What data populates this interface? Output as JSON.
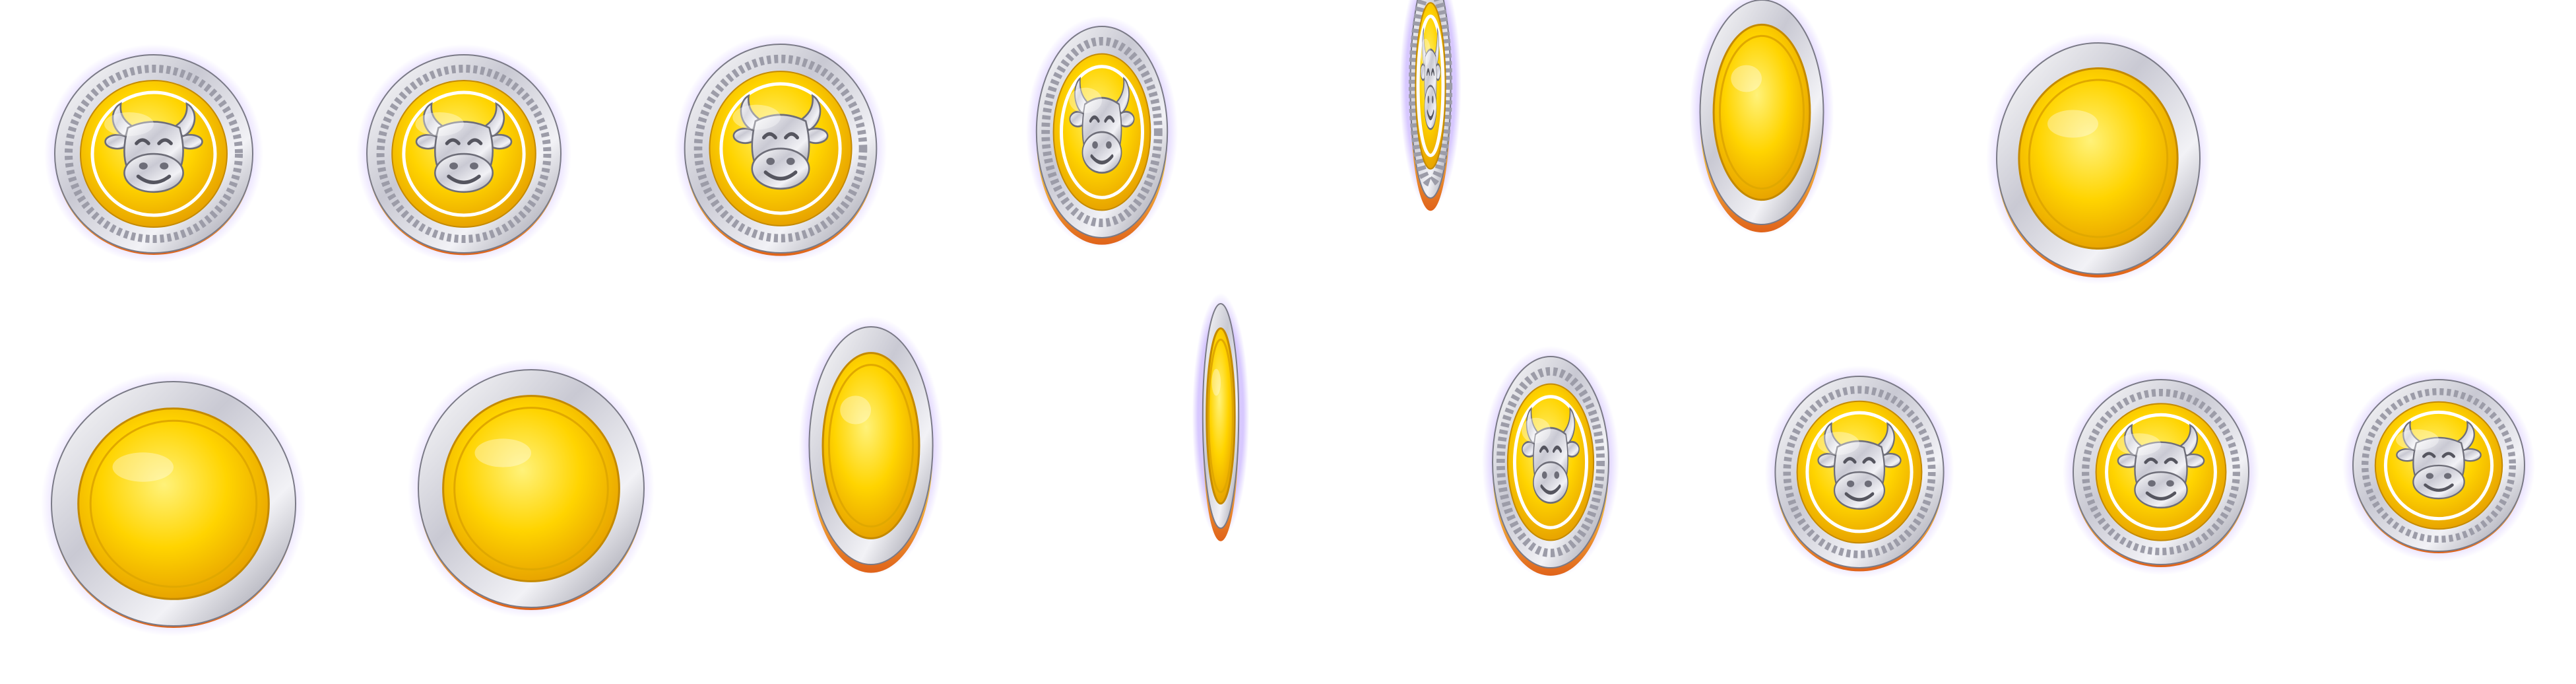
{
  "sprite_sheet": {
    "background": "#ffffff",
    "colors": {
      "gold_light": "#fff27a",
      "gold": "#ffd400",
      "gold_deep": "#e8a400",
      "orange_edge": "#e0631a",
      "silver_light": "#ffffff",
      "silver": "#c9c9d3",
      "silver_dark": "#8c8c99",
      "glow": "#b79cff"
    },
    "emblem_icon": "ox-head-icon",
    "border_pattern": "greek-key-pattern",
    "frames": [
      {
        "id": 1,
        "facing": "front",
        "visible_width": 1.0,
        "face": "emblem"
      },
      {
        "id": 2,
        "facing": "front",
        "visible_width": 0.98,
        "face": "emblem"
      },
      {
        "id": 3,
        "facing": "front",
        "visible_width": 0.92,
        "face": "emblem"
      },
      {
        "id": 4,
        "facing": "front",
        "visible_width": 0.62,
        "face": "emblem"
      },
      {
        "id": 5,
        "facing": "edge",
        "visible_width": 0.18,
        "face": "emblem"
      },
      {
        "id": 6,
        "facing": "back",
        "visible_width": 0.55,
        "face": "plain"
      },
      {
        "id": 7,
        "facing": "back",
        "visible_width": 0.88,
        "face": "plain"
      },
      {
        "id": 8,
        "facing": "back",
        "visible_width": 1.0,
        "face": "plain"
      },
      {
        "id": 9,
        "facing": "back",
        "visible_width": 0.95,
        "face": "plain"
      },
      {
        "id": 10,
        "facing": "back",
        "visible_width": 0.52,
        "face": "plain"
      },
      {
        "id": 11,
        "facing": "edge",
        "visible_width": 0.16,
        "face": "plain"
      },
      {
        "id": 12,
        "facing": "front",
        "visible_width": 0.55,
        "face": "emblem"
      },
      {
        "id": 13,
        "facing": "front",
        "visible_width": 0.88,
        "face": "emblem"
      },
      {
        "id": 14,
        "facing": "front",
        "visible_width": 0.95,
        "face": "emblem"
      },
      {
        "id": 15,
        "facing": "front",
        "visible_width": 1.0,
        "face": "emblem"
      }
    ]
  }
}
